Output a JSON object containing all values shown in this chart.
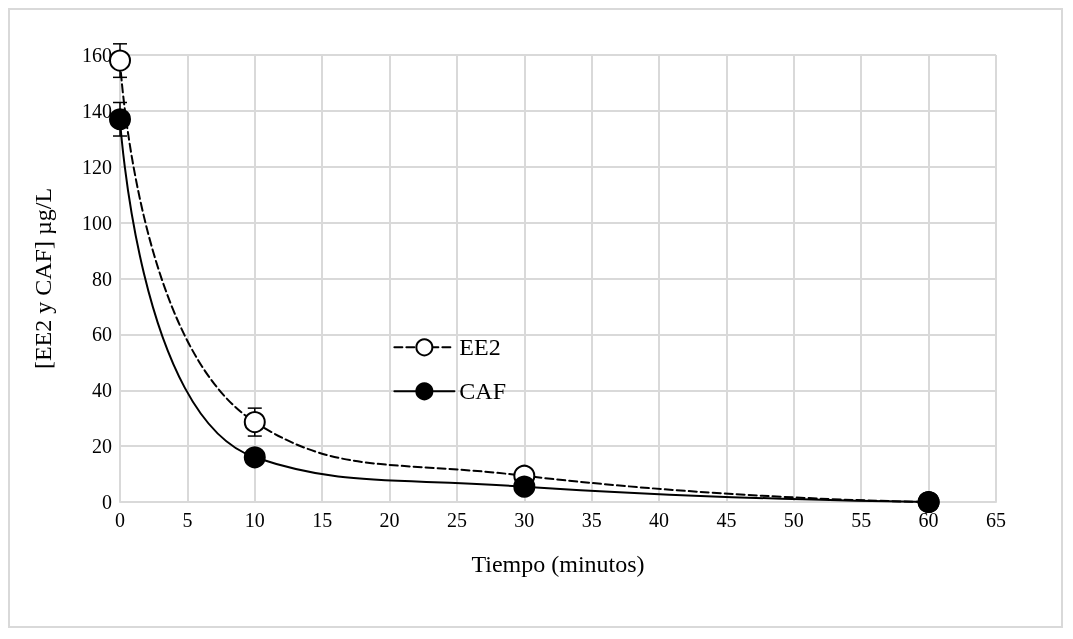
{
  "chart_data": {
    "type": "line",
    "xlabel": "Tiempo (minutos)",
    "ylabel": "[EE2 y CAF] µg/L",
    "x": [
      0,
      10,
      30,
      60
    ],
    "series": [
      {
        "name": "EE2",
        "color": "#000000",
        "colors": [
          "#ffffff",
          "#ffffff",
          "#ffffff",
          "#ffffff"
        ],
        "line_style": "dashed",
        "marker": "circle",
        "values": [
          158,
          28.6,
          9.4,
          0
        ],
        "errors": [
          6,
          5,
          null,
          null
        ]
      },
      {
        "name": "CAF",
        "color": "#000000",
        "line_style": "solid",
        "marker": "circle",
        "values": [
          137,
          16,
          5.5,
          0
        ],
        "errors": [
          6,
          2,
          null,
          null
        ]
      }
    ],
    "xlim": [
      0,
      65
    ],
    "xticks": [
      0,
      5,
      10,
      15,
      20,
      25,
      30,
      35,
      40,
      45,
      50,
      55,
      60,
      65
    ],
    "ylim": [
      0,
      160
    ],
    "yticks": [
      0,
      20,
      40,
      60,
      80,
      100,
      120,
      140,
      160
    ],
    "grid": true,
    "legend": "center"
  }
}
